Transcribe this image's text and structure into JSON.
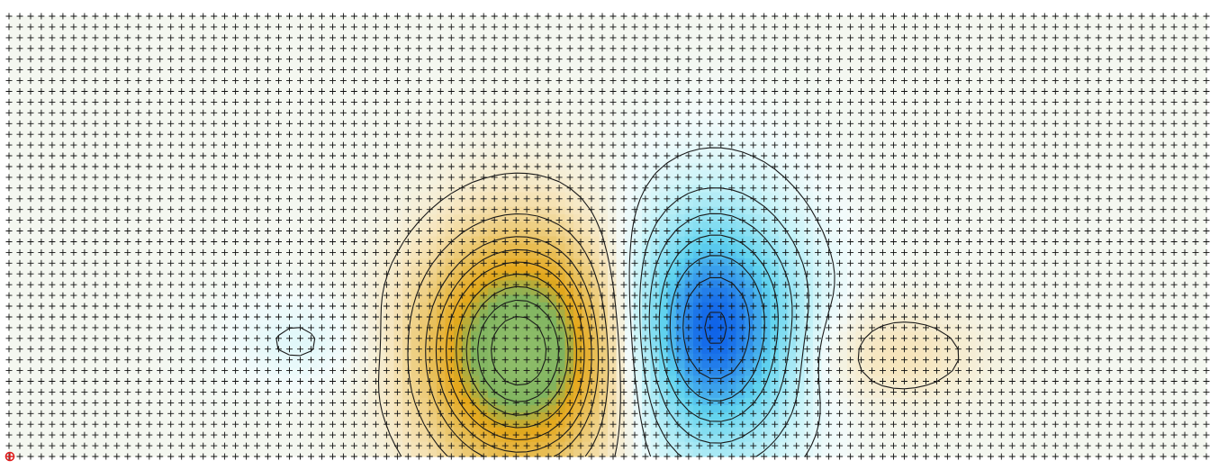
{
  "chart_data": {
    "type": "heatmap",
    "title": "",
    "xlabel": "",
    "ylabel": "",
    "grid": true,
    "grid_marker": "plus",
    "axes_visible": false,
    "legend": "none",
    "colormap": [
      {
        "stop": 0.0,
        "color": "#0a5ce8"
      },
      {
        "stop": 0.2,
        "color": "#5fd2ee"
      },
      {
        "stop": 0.38,
        "color": "#c9f3f8"
      },
      {
        "stop": 0.46,
        "color": "#f3fbfb"
      },
      {
        "stop": 0.56,
        "color": "#f6e5bd"
      },
      {
        "stop": 0.7,
        "color": "#e8bf59"
      },
      {
        "stop": 0.8,
        "color": "#e5a71a"
      },
      {
        "stop": 0.9,
        "color": "#7fb35f"
      },
      {
        "stop": 1.0,
        "color": "#8fbe6a"
      }
    ],
    "x_range": [
      0,
      1
    ],
    "y_range": [
      0,
      1
    ],
    "value_range": [
      -1.05,
      1.15
    ],
    "contour_levels": [
      -1.0,
      -0.85,
      -0.7,
      -0.55,
      -0.4,
      -0.25,
      -0.1,
      0.12,
      0.3,
      0.45,
      0.55,
      0.65,
      0.75,
      0.85,
      0.95,
      1.05
    ],
    "field_components": [
      {
        "name": "positive-lobe",
        "cx": 0.427,
        "cy": 0.24,
        "sx": 0.058,
        "sy": 0.19,
        "amp": 1.15
      },
      {
        "name": "negative-lobe",
        "cx": 0.588,
        "cy": 0.29,
        "sx": 0.05,
        "sy": 0.19,
        "amp": -1.05
      },
      {
        "name": "right-warm-patch",
        "cx": 0.738,
        "cy": 0.23,
        "sx": 0.055,
        "sy": 0.08,
        "amp": 0.2
      },
      {
        "name": "left-cool-patch",
        "cx": 0.245,
        "cy": 0.26,
        "sx": 0.04,
        "sy": 0.07,
        "amp": -0.12
      }
    ],
    "marker": {
      "label": "origin-marker",
      "color": "#e02020"
    }
  }
}
